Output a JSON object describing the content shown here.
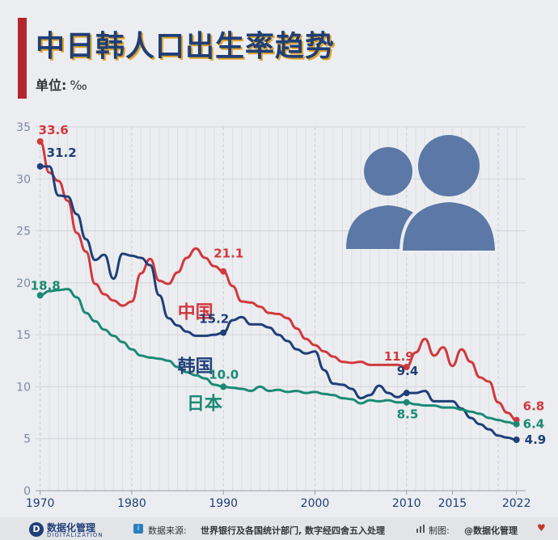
{
  "header": {
    "title": "中日韩人口出生率趋势",
    "unit_label": "单位:",
    "unit_symbol": "‰"
  },
  "chart_data": {
    "type": "line",
    "title": "中日韩人口出生率趋势",
    "ylabel": "单位: ‰",
    "xlim": [
      1969.5,
      2023
    ],
    "ylim": [
      0,
      35
    ],
    "x_ticks": [
      1970,
      1980,
      1990,
      2000,
      2010,
      2015,
      2022
    ],
    "y_ticks": [
      0,
      5,
      10,
      15,
      20,
      25,
      30,
      35
    ],
    "grid": true,
    "series": [
      {
        "name": "中国",
        "color": "#d0393e",
        "x": [
          1970,
          1971,
          1972,
          1973,
          1974,
          1975,
          1976,
          1977,
          1978,
          1979,
          1980,
          1981,
          1982,
          1983,
          1984,
          1985,
          1986,
          1987,
          1988,
          1989,
          1990,
          1991,
          1992,
          1993,
          1994,
          1995,
          1996,
          1997,
          1998,
          1999,
          2000,
          2001,
          2002,
          2003,
          2004,
          2005,
          2006,
          2007,
          2008,
          2009,
          2010,
          2011,
          2012,
          2013,
          2014,
          2015,
          2016,
          2017,
          2018,
          2019,
          2020,
          2021,
          2022
        ],
        "values": [
          33.6,
          30.6,
          29.8,
          27.9,
          24.8,
          23.0,
          19.9,
          18.9,
          18.3,
          17.8,
          18.2,
          20.9,
          22.3,
          20.2,
          19.9,
          21.0,
          22.4,
          23.3,
          22.4,
          21.6,
          21.1,
          19.7,
          18.2,
          18.1,
          17.7,
          17.1,
          17.0,
          16.6,
          15.6,
          14.6,
          14.0,
          13.4,
          12.9,
          12.4,
          12.3,
          12.4,
          12.1,
          12.1,
          12.1,
          12.1,
          11.9,
          13.3,
          14.6,
          13.0,
          13.8,
          12.0,
          13.6,
          12.4,
          10.9,
          10.5,
          8.5,
          7.5,
          6.8
        ],
        "point_labels": [
          {
            "x": 1970,
            "label": "33.6"
          },
          {
            "x": 1990,
            "label": "21.1"
          },
          {
            "x": 2010,
            "label": "11.9"
          },
          {
            "x": 2022,
            "label": "6.8"
          }
        ]
      },
      {
        "name": "韩国",
        "color": "#1f3f78",
        "x": [
          1970,
          1971,
          1972,
          1973,
          1974,
          1975,
          1976,
          1977,
          1978,
          1979,
          1980,
          1981,
          1982,
          1983,
          1984,
          1985,
          1986,
          1987,
          1988,
          1989,
          1990,
          1991,
          1992,
          1993,
          1994,
          1995,
          1996,
          1997,
          1998,
          1999,
          2000,
          2001,
          2002,
          2003,
          2004,
          2005,
          2006,
          2007,
          2008,
          2009,
          2010,
          2011,
          2012,
          2013,
          2014,
          2015,
          2016,
          2017,
          2018,
          2019,
          2020,
          2021,
          2022
        ],
        "values": [
          31.2,
          31.2,
          28.4,
          28.3,
          26.6,
          24.2,
          22.2,
          22.7,
          20.4,
          22.8,
          22.6,
          22.4,
          21.7,
          18.8,
          16.6,
          15.9,
          15.3,
          14.9,
          14.9,
          15.0,
          15.2,
          16.4,
          16.7,
          16.0,
          16.0,
          15.7,
          15.0,
          14.4,
          13.6,
          13.2,
          13.4,
          11.6,
          10.3,
          10.2,
          9.8,
          8.9,
          9.2,
          10.1,
          9.4,
          9.0,
          9.4,
          9.4,
          9.6,
          8.6,
          8.6,
          8.6,
          7.9,
          7.0,
          6.4,
          5.9,
          5.3,
          5.1,
          4.9
        ],
        "point_labels": [
          {
            "x": 1970,
            "label": "31.2"
          },
          {
            "x": 1990,
            "label": "15.2"
          },
          {
            "x": 2010,
            "label": "9.4"
          },
          {
            "x": 2022,
            "label": "4.9"
          }
        ]
      },
      {
        "name": "日本",
        "color": "#1a8a75",
        "x": [
          1970,
          1971,
          1972,
          1973,
          1974,
          1975,
          1976,
          1977,
          1978,
          1979,
          1980,
          1981,
          1982,
          1983,
          1984,
          1985,
          1986,
          1987,
          1988,
          1989,
          1990,
          1991,
          1992,
          1993,
          1994,
          1995,
          1996,
          1997,
          1998,
          1999,
          2000,
          2001,
          2002,
          2003,
          2004,
          2005,
          2006,
          2007,
          2008,
          2009,
          2010,
          2011,
          2012,
          2013,
          2014,
          2015,
          2016,
          2017,
          2018,
          2019,
          2020,
          2021,
          2022
        ],
        "values": [
          18.8,
          19.2,
          19.3,
          19.4,
          18.6,
          17.1,
          16.3,
          15.5,
          14.9,
          14.3,
          13.6,
          13.0,
          12.8,
          12.7,
          12.5,
          11.9,
          11.4,
          11.1,
          10.8,
          10.2,
          10.0,
          9.9,
          9.8,
          9.6,
          10.0,
          9.6,
          9.7,
          9.5,
          9.6,
          9.4,
          9.5,
          9.3,
          9.2,
          8.9,
          8.8,
          8.4,
          8.7,
          8.6,
          8.7,
          8.5,
          8.5,
          8.3,
          8.2,
          8.2,
          8.0,
          8.0,
          7.8,
          7.6,
          7.4,
          7.0,
          6.8,
          6.6,
          6.4
        ],
        "point_labels": [
          {
            "x": 1970,
            "label": "18.8"
          },
          {
            "x": 1990,
            "label": "10.0"
          },
          {
            "x": 2010,
            "label": "8.5"
          },
          {
            "x": 2022,
            "label": "6.4"
          }
        ]
      }
    ]
  },
  "footer": {
    "brand": "数据化管理",
    "brand_en": "DIGITALIZATION",
    "source_label": "数据来源:",
    "source_text": "世界银行及各国统计部门, 数字经四舍五入处理",
    "made_label": "制图:",
    "author": "@数据化管理"
  }
}
